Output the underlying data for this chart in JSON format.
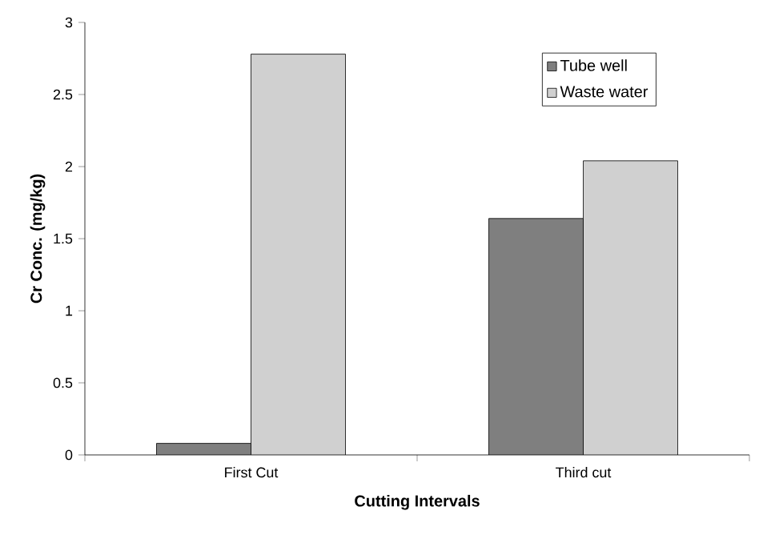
{
  "chart_data": {
    "type": "bar",
    "xlabel": "Cutting Intervals",
    "ylabel": "Cr Conc. (mg/kg)",
    "categories": [
      "First Cut",
      "Third cut"
    ],
    "series": [
      {
        "name": "Tube well",
        "color": "#7f7f7f",
        "values": [
          0.08,
          1.64
        ]
      },
      {
        "name": "Waste water",
        "color": "#d0d0d0",
        "values": [
          2.78,
          2.04
        ]
      }
    ],
    "ylim": [
      0,
      3
    ],
    "yticks": [
      0,
      0.5,
      1,
      1.5,
      2,
      2.5,
      3
    ],
    "legend": "top right"
  }
}
